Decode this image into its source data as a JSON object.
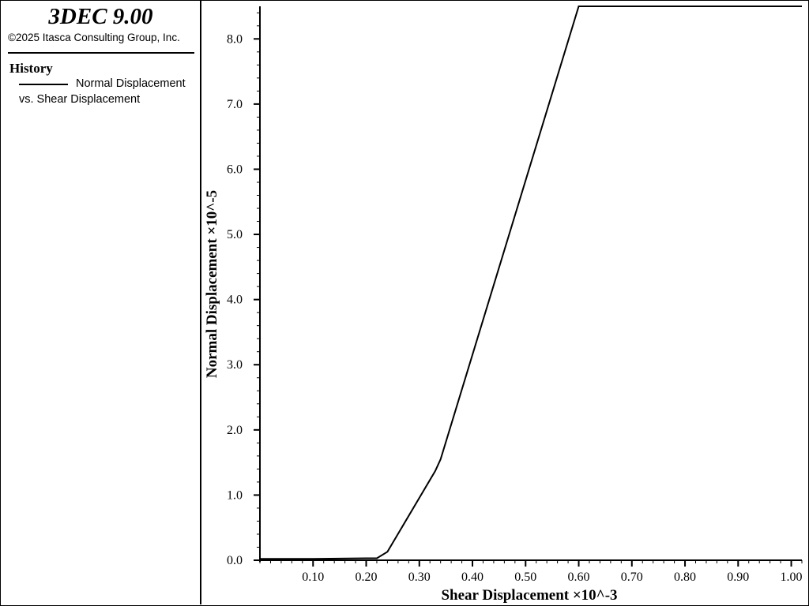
{
  "legend_panel": {
    "app_title": "3DEC 9.00",
    "copyright": "©2025 Itasca Consulting Group, Inc.",
    "section_heading": "History",
    "series_label_line1": "Normal Displacement",
    "series_label_line2": "vs. Shear Displacement"
  },
  "chart_data": {
    "type": "line",
    "xlabel": "Shear Displacement ×10^-3",
    "ylabel": "Normal Displacement ×10^-5",
    "xlim": [
      0.0,
      1.02
    ],
    "ylim": [
      0.0,
      8.5
    ],
    "x_ticks": [
      0.1,
      0.2,
      0.3,
      0.4,
      0.5,
      0.6,
      0.7,
      0.8,
      0.9,
      1.0
    ],
    "x_tick_labels": [
      "0.10",
      "0.20",
      "0.30",
      "0.40",
      "0.50",
      "0.60",
      "0.70",
      "0.80",
      "0.90",
      "1.00"
    ],
    "y_ticks": [
      0.0,
      1.0,
      2.0,
      3.0,
      4.0,
      5.0,
      6.0,
      7.0,
      8.0
    ],
    "y_tick_labels": [
      "0.0",
      "1.0",
      "2.0",
      "3.0",
      "4.0",
      "5.0",
      "6.0",
      "7.0",
      "8.0"
    ],
    "x_minor_step": 0.02,
    "y_minor_step": 0.2,
    "grid": false,
    "legend": "left-panel",
    "line_color": "#000000",
    "series": [
      {
        "x": [
          0.0,
          0.1,
          0.2,
          0.22,
          0.24,
          0.33,
          0.34,
          0.6,
          1.02
        ],
        "y": [
          0.02,
          0.02,
          0.03,
          0.03,
          0.13,
          1.37,
          1.55,
          8.5,
          8.5
        ]
      }
    ]
  }
}
